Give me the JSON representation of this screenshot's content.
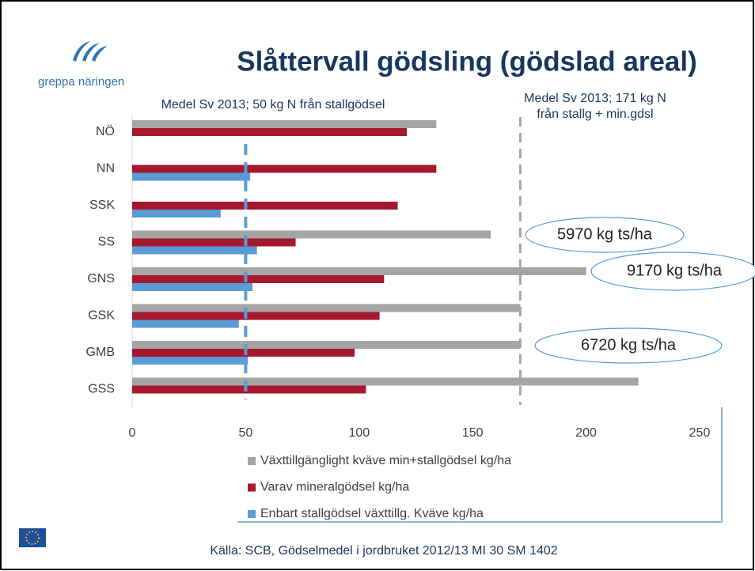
{
  "logo_text": "greppa näringen",
  "chart_data": {
    "type": "bar",
    "orientation": "horizontal",
    "title": "Slåttervall gödsling (gödslad areal)",
    "categories": [
      "NÖ",
      "NN",
      "SSK",
      "SS",
      "GNS",
      "GSK",
      "GMB",
      "GSS"
    ],
    "series": [
      {
        "name": "Växttillgänglight kväve min+stallgödsel kg/ha",
        "color": "#a5a5a5",
        "values": [
          134,
          null,
          null,
          158,
          200,
          171,
          171,
          223
        ]
      },
      {
        "name": "Varav mineralgödsel kg/ha",
        "color": "#a5182e",
        "values": [
          121,
          134,
          117,
          72,
          111,
          109,
          98,
          103
        ]
      },
      {
        "name": "Enbart stallgödsel växttillg. Kväve kg/ha",
        "color": "#5b9bd5",
        "values": [
          null,
          52,
          39,
          55,
          53,
          47,
          51,
          null
        ]
      }
    ],
    "xlim": [
      0,
      250
    ],
    "xticks": [
      0,
      50,
      100,
      150,
      200,
      250
    ],
    "reference_lines": [
      {
        "value": 50,
        "color": "#5b9bd5",
        "label_lines": [
          "Medel Sv 2013; 50 kg N från stallgödsel"
        ]
      },
      {
        "value": 171,
        "color": "#a5a5a5",
        "label_lines": [
          "Medel Sv 2013; 171 kg N",
          "från stallg + min.gdsl"
        ]
      }
    ],
    "annotations": [
      "5970 kg ts/ha",
      "9170 kg ts/ha",
      "6720 kg ts/ha"
    ],
    "source": "Källa: SCB, Gödselmedel i jordbruket 2012/13 MI 30 SM 1402"
  }
}
